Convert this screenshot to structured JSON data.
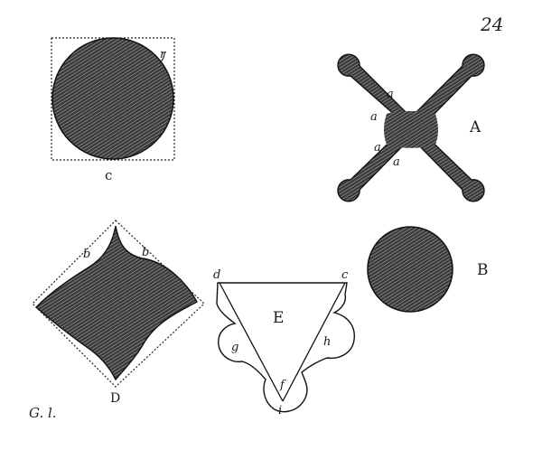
{
  "plate_number": "24",
  "figures": {
    "c": {
      "label": "c",
      "corner_mark": "r"
    },
    "A": {
      "label": "A",
      "edge_marks": [
        "a",
        "a",
        "a",
        "a"
      ]
    },
    "B": {
      "label": "B"
    },
    "D": {
      "label": "D",
      "side_marks": [
        "b",
        "b"
      ]
    },
    "E": {
      "label": "E",
      "point_marks": [
        "d",
        "c",
        "g",
        "h",
        "f",
        "i"
      ]
    }
  },
  "signature": "G. l."
}
